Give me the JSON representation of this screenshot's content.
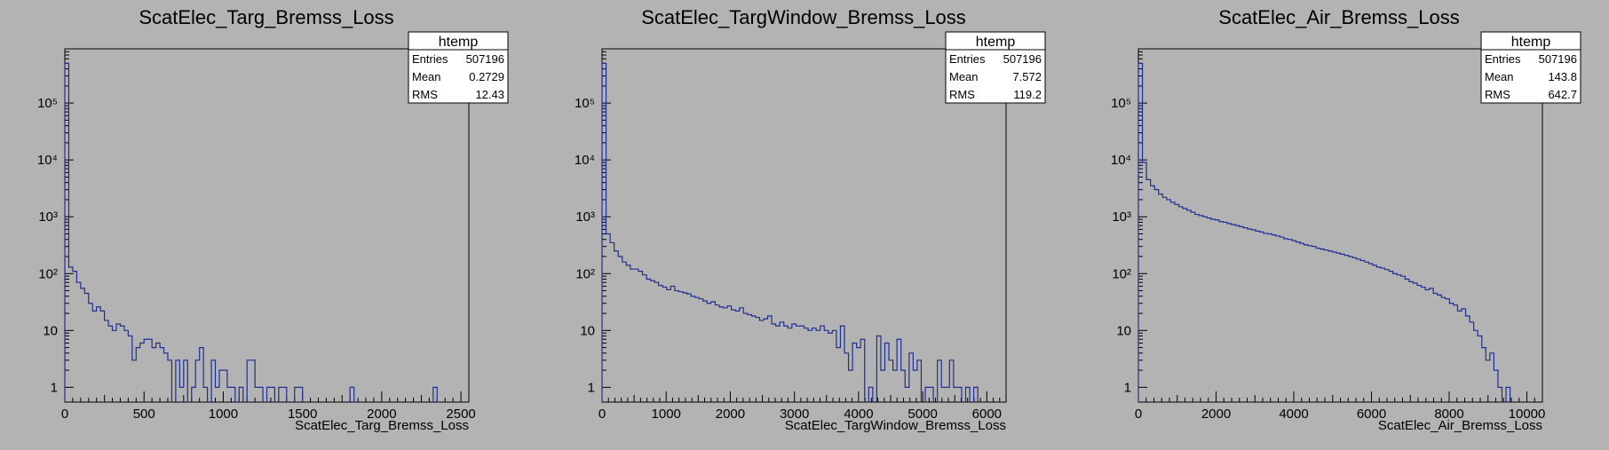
{
  "chart_data": [
    {
      "type": "bar",
      "title": "ScatElec_Targ_Bremss_Loss",
      "xlabel": "ScatElec_Targ_Bremss_Loss",
      "ylabel": "",
      "log_y": true,
      "xlim": [
        0,
        2550
      ],
      "ylim": [
        0.55,
        900000
      ],
      "xticks": [
        0,
        500,
        1000,
        1500,
        2000,
        2500
      ],
      "xtick_labels": [
        "0",
        "500",
        "1000",
        "1500",
        "2000",
        "2500"
      ],
      "yticks": [
        1,
        10,
        100,
        1000,
        10000,
        100000
      ],
      "ytick_labels": [
        "1",
        "10",
        "10²",
        "10³",
        "10⁴",
        "10⁵"
      ],
      "line_color": "#1f2f8f",
      "stats": {
        "name": "htemp",
        "entries_label": "Entries",
        "entries": "507196",
        "mean_label": "Mean",
        "mean": "0.2729",
        "rms_label": "RMS",
        "rms": "12.43"
      },
      "bin_width": 25,
      "x": [
        0,
        25,
        50,
        75,
        100,
        125,
        150,
        175,
        200,
        225,
        250,
        275,
        300,
        325,
        350,
        375,
        400,
        425,
        450,
        475,
        500,
        525,
        550,
        575,
        600,
        625,
        650,
        675,
        700,
        725,
        750,
        775,
        800,
        825,
        850,
        875,
        900,
        925,
        950,
        975,
        1000,
        1025,
        1050,
        1075,
        1100,
        1125,
        1150,
        1175,
        1200,
        1225,
        1250,
        1275,
        1300,
        1325,
        1350,
        1375,
        1400,
        1425,
        1450,
        1475,
        1500,
        1525,
        1550,
        1575,
        1600,
        1625,
        1650,
        1675,
        1700,
        1725,
        1750,
        1775,
        1800,
        1825,
        1850,
        1875,
        1900,
        1925,
        1950,
        1975,
        2000,
        2025,
        2050,
        2075,
        2100,
        2125,
        2150,
        2175,
        2200,
        2225,
        2250,
        2275,
        2300,
        2325,
        2350,
        2375,
        2400,
        2425,
        2450,
        2475
      ],
      "values": [
        500000,
        130,
        110,
        70,
        55,
        45,
        30,
        22,
        26,
        22,
        15,
        12,
        10,
        13,
        12,
        10,
        8,
        3,
        5,
        6,
        7,
        7,
        5,
        6,
        5,
        4,
        3,
        0,
        3,
        1,
        3,
        0,
        1,
        3,
        5,
        1,
        0,
        3,
        1,
        2,
        2,
        1,
        1,
        0,
        1,
        0,
        3,
        3,
        1,
        1,
        0,
        1,
        1,
        0,
        1,
        1,
        0,
        0,
        1,
        1,
        0,
        0,
        0,
        0,
        0,
        0,
        0,
        0,
        0,
        0,
        0,
        0,
        1,
        0,
        0,
        0,
        0,
        0,
        0,
        0,
        0,
        0,
        0,
        0,
        0,
        0,
        0,
        0,
        0,
        0,
        0,
        0,
        0,
        1,
        0,
        0,
        0,
        0,
        0,
        0
      ]
    },
    {
      "type": "bar",
      "title": "ScatElec_TargWindow_Bremss_Loss",
      "xlabel": "ScatElec_TargWindow_Bremss_Loss",
      "ylabel": "",
      "log_y": true,
      "xlim": [
        0,
        6300
      ],
      "ylim": [
        0.55,
        900000
      ],
      "xticks": [
        0,
        1000,
        2000,
        3000,
        4000,
        5000,
        6000
      ],
      "xtick_labels": [
        "0",
        "1000",
        "2000",
        "3000",
        "4000",
        "5000",
        "6000"
      ],
      "yticks": [
        1,
        10,
        100,
        1000,
        10000,
        100000
      ],
      "ytick_labels": [
        "1",
        "10",
        "10²",
        "10³",
        "10⁴",
        "10⁵"
      ],
      "line_color": "#1f2f8f",
      "stats": {
        "name": "htemp",
        "entries_label": "Entries",
        "entries": "507196",
        "mean_label": "Mean",
        "mean": "7.572",
        "rms_label": "RMS",
        "rms": "119.2"
      },
      "bin_width": 63,
      "x": [
        0,
        63,
        126,
        189,
        252,
        315,
        378,
        441,
        504,
        567,
        630,
        693,
        756,
        819,
        882,
        945,
        1008,
        1071,
        1134,
        1197,
        1260,
        1323,
        1386,
        1449,
        1512,
        1575,
        1638,
        1701,
        1764,
        1827,
        1890,
        1953,
        2016,
        2079,
        2142,
        2205,
        2268,
        2331,
        2394,
        2457,
        2520,
        2583,
        2646,
        2709,
        2772,
        2835,
        2898,
        2961,
        3024,
        3087,
        3150,
        3213,
        3276,
        3339,
        3402,
        3465,
        3528,
        3591,
        3654,
        3717,
        3780,
        3843,
        3906,
        3969,
        4032,
        4095,
        4158,
        4221,
        4284,
        4347,
        4410,
        4473,
        4536,
        4599,
        4662,
        4725,
        4788,
        4851,
        4914,
        4977,
        5040,
        5103,
        5166,
        5229,
        5292,
        5355,
        5418,
        5481,
        5544,
        5607,
        5670,
        5733,
        5796,
        5859,
        5922,
        5985,
        6048,
        6111,
        6174,
        6237
      ],
      "values": [
        500000,
        500,
        350,
        250,
        200,
        160,
        140,
        120,
        120,
        110,
        95,
        80,
        75,
        70,
        62,
        58,
        52,
        60,
        50,
        48,
        46,
        44,
        40,
        38,
        36,
        33,
        30,
        32,
        28,
        26,
        25,
        27,
        23,
        22,
        25,
        20,
        19,
        18,
        17,
        15,
        16,
        18,
        13,
        12,
        14,
        12,
        11,
        13,
        12,
        12,
        11,
        10,
        11,
        10,
        12,
        10,
        9,
        10,
        5,
        12,
        4,
        2,
        6,
        5,
        7,
        0,
        1,
        0,
        8,
        2,
        6,
        3,
        2,
        7,
        2,
        1,
        4,
        2,
        3,
        0,
        1,
        1,
        0,
        3,
        1,
        1,
        3,
        1,
        1,
        0,
        1,
        0,
        1,
        0,
        0,
        0,
        0,
        0,
        0,
        0
      ]
    },
    {
      "type": "bar",
      "title": "ScatElec_Air_Bremss_Loss",
      "xlabel": "ScatElec_Air_Bremss_Loss",
      "ylabel": "",
      "log_y": true,
      "xlim": [
        0,
        10400
      ],
      "ylim": [
        0.55,
        900000
      ],
      "xticks": [
        0,
        2000,
        4000,
        6000,
        8000,
        10000
      ],
      "xtick_labels": [
        "0",
        "2000",
        "4000",
        "6000",
        "8000",
        "10000"
      ],
      "yticks": [
        1,
        10,
        100,
        1000,
        10000,
        100000
      ],
      "ytick_labels": [
        "1",
        "10",
        "10²",
        "10³",
        "10⁴",
        "10⁵"
      ],
      "line_color": "#1f2f8f",
      "stats": {
        "name": "htemp",
        "entries_label": "Entries",
        "entries": "507196",
        "mean_label": "Mean",
        "mean": "143.8",
        "rms_label": "RMS",
        "rms": "642.7"
      },
      "bin_width": 104,
      "x": [
        0,
        104,
        208,
        312,
        416,
        520,
        624,
        728,
        832,
        936,
        1040,
        1144,
        1248,
        1352,
        1456,
        1560,
        1664,
        1768,
        1872,
        1976,
        2080,
        2184,
        2288,
        2392,
        2496,
        2600,
        2704,
        2808,
        2912,
        3016,
        3120,
        3224,
        3328,
        3432,
        3536,
        3640,
        3744,
        3848,
        3952,
        4056,
        4160,
        4264,
        4368,
        4472,
        4576,
        4680,
        4784,
        4888,
        4992,
        5096,
        5200,
        5304,
        5408,
        5512,
        5616,
        5720,
        5824,
        5928,
        6032,
        6136,
        6240,
        6344,
        6448,
        6552,
        6656,
        6760,
        6864,
        6968,
        7072,
        7176,
        7280,
        7384,
        7488,
        7592,
        7696,
        7800,
        7904,
        8008,
        8112,
        8216,
        8320,
        8424,
        8528,
        8632,
        8736,
        8840,
        8944,
        9048,
        9152,
        9256,
        9360,
        9464,
        9568,
        9672,
        9776,
        9880,
        9984,
        10088,
        10192,
        10296
      ],
      "values": [
        500000,
        9000,
        4500,
        3500,
        3000,
        2500,
        2200,
        2000,
        1800,
        1650,
        1500,
        1400,
        1300,
        1200,
        1100,
        1050,
        1000,
        950,
        900,
        880,
        820,
        800,
        760,
        730,
        700,
        670,
        640,
        610,
        590,
        560,
        540,
        510,
        500,
        480,
        460,
        440,
        410,
        400,
        380,
        360,
        340,
        320,
        310,
        300,
        280,
        270,
        260,
        250,
        240,
        230,
        220,
        210,
        200,
        190,
        180,
        170,
        160,
        150,
        140,
        130,
        125,
        118,
        110,
        100,
        95,
        90,
        80,
        72,
        68,
        62,
        58,
        52,
        55,
        45,
        42,
        38,
        36,
        30,
        28,
        22,
        24,
        18,
        14,
        10,
        8,
        5,
        3,
        4,
        2,
        1,
        0,
        1,
        0,
        0,
        0,
        0,
        0,
        0,
        0,
        0
      ]
    }
  ]
}
